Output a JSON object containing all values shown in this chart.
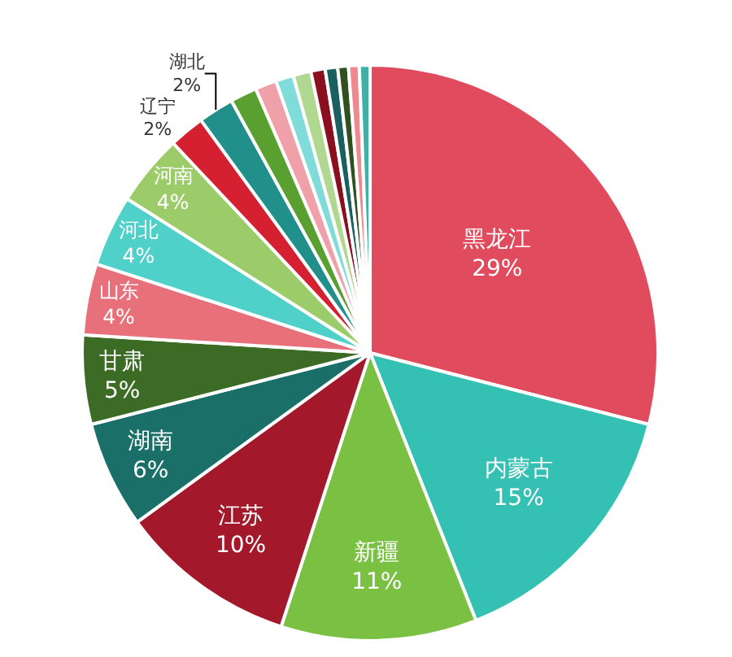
{
  "chart_data": {
    "type": "pie",
    "categories": [
      "黑龙江",
      "内蒙古",
      "新疆",
      "江苏",
      "湖南",
      "甘肃",
      "山东",
      "河北",
      "河南",
      "辽宁",
      "湖北",
      null,
      null,
      null,
      null,
      null,
      null,
      null,
      null,
      null
    ],
    "values": [
      29,
      15,
      11,
      10,
      6,
      5,
      4,
      4,
      4,
      2,
      2,
      1.5,
      1.2,
      1,
      1,
      0.8,
      0.7,
      0.6,
      0.6,
      0.6
    ],
    "value_labels": [
      "29%",
      "15%",
      "11%",
      "10%",
      "6%",
      "5%",
      "4%",
      "4%",
      "4%",
      "2%",
      "2%",
      null,
      null,
      null,
      null,
      null,
      null,
      null,
      null,
      null
    ],
    "colors": [
      "#e04c5e",
      "#35c0b4",
      "#7ac143",
      "#a3182a",
      "#1a7069",
      "#3b6b24",
      "#e8707a",
      "#4fd0c8",
      "#9ccc6a",
      "#d42030",
      "#22908a",
      "#5aa030",
      "#f0a0a8",
      "#80dcd8",
      "#b0d890",
      "#8a1020",
      "#1a6060",
      "#305020",
      "#f08890",
      "#40b0a8"
    ],
    "legend": false
  }
}
